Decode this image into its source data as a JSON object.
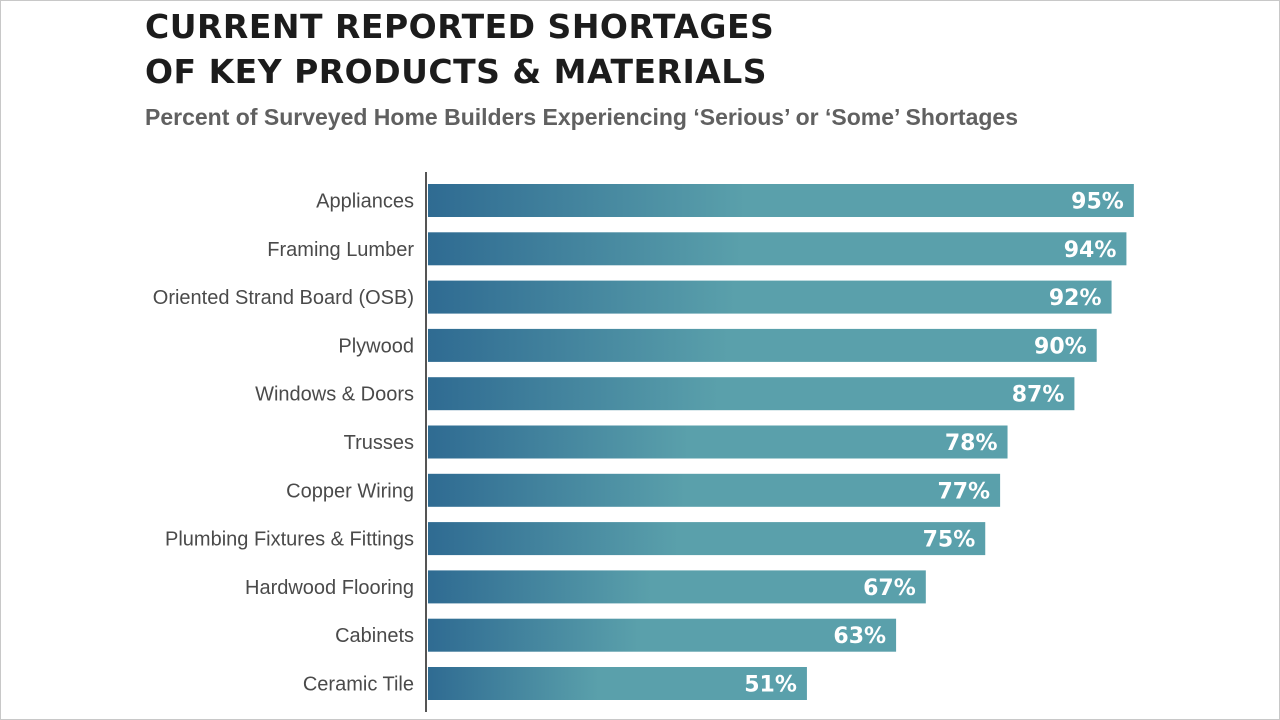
{
  "title_lines": [
    "CURRENT REPORTED SHORTAGES",
    "OF KEY PRODUCTS & MATERIALS"
  ],
  "subtitle": "Percent of Surveyed Home Builders Experiencing ‘Serious’ or ‘Some’ Shortages",
  "colors": {
    "bar_start": "#2f6b92",
    "bar_end": "#5aa0ab",
    "axis": "#555555"
  },
  "chart_data": {
    "type": "bar",
    "orientation": "horizontal",
    "title": "CURRENT REPORTED SHORTAGES OF KEY PRODUCTS & MATERIALS",
    "subtitle": "Percent of Surveyed Home Builders Experiencing ‘Serious’ or ‘Some’ Shortages",
    "categories": [
      "Appliances",
      "Framing Lumber",
      "Oriented Strand Board (OSB)",
      "Plywood",
      "Windows & Doors",
      "Trusses",
      "Copper Wiring",
      "Plumbing Fixtures & Fittings",
      "Hardwood Flooring",
      "Cabinets",
      "Ceramic Tile"
    ],
    "values": [
      95,
      94,
      92,
      90,
      87,
      78,
      77,
      75,
      67,
      63,
      51
    ],
    "value_labels": [
      "95%",
      "94%",
      "92%",
      "90%",
      "87%",
      "78%",
      "77%",
      "75%",
      "67%",
      "63%",
      "51%"
    ],
    "xlim": [
      0,
      100
    ],
    "grid": false,
    "legend": "none"
  }
}
